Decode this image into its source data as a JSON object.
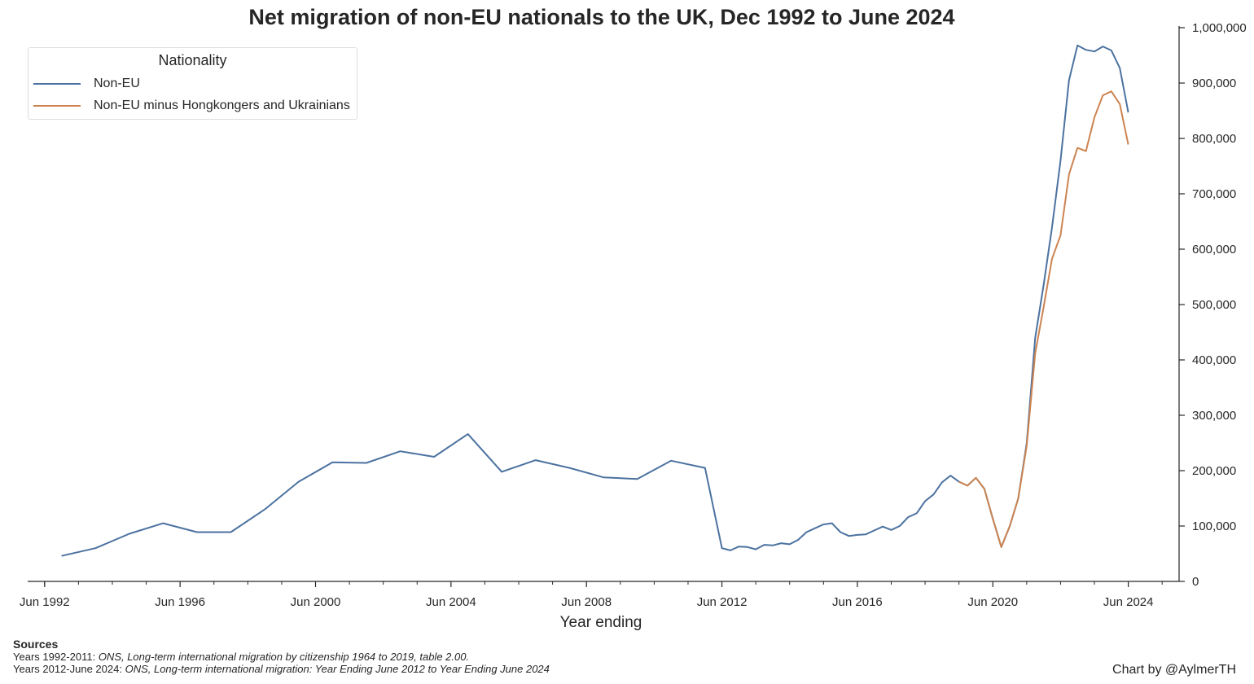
{
  "chart_data": {
    "type": "line",
    "title": "Net migration of non-EU nationals to the UK, Dec 1992 to June 2024",
    "xlabel": "Year ending",
    "ylabel": "",
    "x_axis": {
      "type": "date",
      "range": [
        "1991-12",
        "2025-12"
      ],
      "tick_labels": [
        "Jun 1992",
        "Jun 1996",
        "Jun 2000",
        "Jun 2004",
        "Jun 2008",
        "Jun 2012",
        "Jun 2016",
        "Jun 2020",
        "Jun 2024"
      ],
      "tick_dates": [
        "1992-06",
        "1996-06",
        "2000-06",
        "2004-06",
        "2008-06",
        "2012-06",
        "2016-06",
        "2020-06",
        "2024-06"
      ],
      "minor_tick_years": [
        1992,
        1993,
        1994,
        1995,
        1997,
        1998,
        1999,
        2001,
        2002,
        2003,
        2005,
        2006,
        2007,
        2009,
        2010,
        2011,
        2013,
        2014,
        2015,
        2017,
        2018,
        2019,
        2021,
        2022,
        2023,
        2025
      ]
    },
    "y_axis": {
      "position": "right",
      "ylim": [
        0,
        1000000
      ],
      "ticks": [
        0,
        100000,
        200000,
        300000,
        400000,
        500000,
        600000,
        700000,
        800000,
        900000,
        1000000
      ],
      "tick_labels": [
        "0",
        "100,000",
        "200,000",
        "300,000",
        "400,000",
        "500,000",
        "600,000",
        "700,000",
        "800,000",
        "900,000",
        "1,000,000"
      ]
    },
    "grid": false,
    "legend": {
      "title": "Nationality",
      "placement": "top-left"
    },
    "series": [
      {
        "name": "Non-EU",
        "color": "#4c72a0",
        "points": [
          [
            "1992-12",
            46000
          ],
          [
            "1993-12",
            60000
          ],
          [
            "1994-12",
            86000
          ],
          [
            "1995-12",
            105000
          ],
          [
            "1996-12",
            89000
          ],
          [
            "1997-12",
            89000
          ],
          [
            "1998-12",
            130000
          ],
          [
            "1999-12",
            180000
          ],
          [
            "2000-12",
            215000
          ],
          [
            "2001-12",
            214000
          ],
          [
            "2002-12",
            235000
          ],
          [
            "2003-12",
            225000
          ],
          [
            "2004-12",
            266000
          ],
          [
            "2005-12",
            198000
          ],
          [
            "2006-12",
            219000
          ],
          [
            "2007-12",
            205000
          ],
          [
            "2008-12",
            188000
          ],
          [
            "2009-12",
            185000
          ],
          [
            "2010-12",
            218000
          ],
          [
            "2011-12",
            205000
          ],
          [
            "2012-06",
            60000
          ],
          [
            "2012-09",
            56000
          ],
          [
            "2012-12",
            63000
          ],
          [
            "2013-03",
            62000
          ],
          [
            "2013-06",
            58000
          ],
          [
            "2013-09",
            66000
          ],
          [
            "2013-12",
            65000
          ],
          [
            "2014-03",
            69000
          ],
          [
            "2014-06",
            67000
          ],
          [
            "2014-09",
            75000
          ],
          [
            "2014-12",
            89000
          ],
          [
            "2015-03",
            96000
          ],
          [
            "2015-06",
            103000
          ],
          [
            "2015-09",
            105000
          ],
          [
            "2015-12",
            89000
          ],
          [
            "2016-03",
            82000
          ],
          [
            "2016-06",
            84000
          ],
          [
            "2016-09",
            85000
          ],
          [
            "2016-12",
            92000
          ],
          [
            "2017-03",
            99000
          ],
          [
            "2017-06",
            93000
          ],
          [
            "2017-09",
            100000
          ],
          [
            "2017-12",
            116000
          ],
          [
            "2018-03",
            123000
          ],
          [
            "2018-06",
            145000
          ],
          [
            "2018-09",
            157000
          ],
          [
            "2018-12",
            179000
          ],
          [
            "2019-03",
            191000
          ],
          [
            "2019-06",
            180000
          ],
          [
            "2019-09",
            173000
          ],
          [
            "2019-12",
            187000
          ],
          [
            "2020-03",
            167000
          ],
          [
            "2020-06",
            113000
          ],
          [
            "2020-09",
            62000
          ],
          [
            "2020-12",
            100000
          ],
          [
            "2021-03",
            150000
          ],
          [
            "2021-06",
            250000
          ],
          [
            "2021-09",
            440000
          ],
          [
            "2021-12",
            535000
          ],
          [
            "2022-03",
            640000
          ],
          [
            "2022-06",
            760000
          ],
          [
            "2022-09",
            905000
          ],
          [
            "2022-12",
            968000
          ],
          [
            "2023-03",
            960000
          ],
          [
            "2023-06",
            957000
          ],
          [
            "2023-09",
            966000
          ],
          [
            "2023-12",
            959000
          ],
          [
            "2024-03",
            927000
          ],
          [
            "2024-06",
            847000
          ]
        ]
      },
      {
        "name": "Non-EU minus Hongkongers and Ukrainians",
        "color": "#cc8451",
        "points": [
          [
            "2019-06",
            180000
          ],
          [
            "2019-09",
            173000
          ],
          [
            "2019-12",
            187000
          ],
          [
            "2020-03",
            167000
          ],
          [
            "2020-06",
            113000
          ],
          [
            "2020-09",
            62000
          ],
          [
            "2020-12",
            100000
          ],
          [
            "2021-03",
            150000
          ],
          [
            "2021-06",
            245000
          ],
          [
            "2021-09",
            412000
          ],
          [
            "2021-12",
            495000
          ],
          [
            "2022-03",
            583000
          ],
          [
            "2022-06",
            625000
          ],
          [
            "2022-09",
            735000
          ],
          [
            "2022-12",
            783000
          ],
          [
            "2023-03",
            777000
          ],
          [
            "2023-06",
            838000
          ],
          [
            "2023-09",
            878000
          ],
          [
            "2023-12",
            885000
          ],
          [
            "2024-03",
            862000
          ],
          [
            "2024-06",
            789000
          ]
        ]
      }
    ]
  },
  "sources": {
    "heading": "Sources",
    "line1_prefix": "Years 1992-2011: ",
    "line1_source": "ONS, Long-term international migration by citizenship 1964 to 2019, table 2.00.",
    "line2_prefix": "Years 2012-June 2024: ",
    "line2_source": "ONS, Long-term international migration: Year Ending June 2012 to Year Ending June 2024"
  },
  "credit": "Chart by @AylmerTH"
}
